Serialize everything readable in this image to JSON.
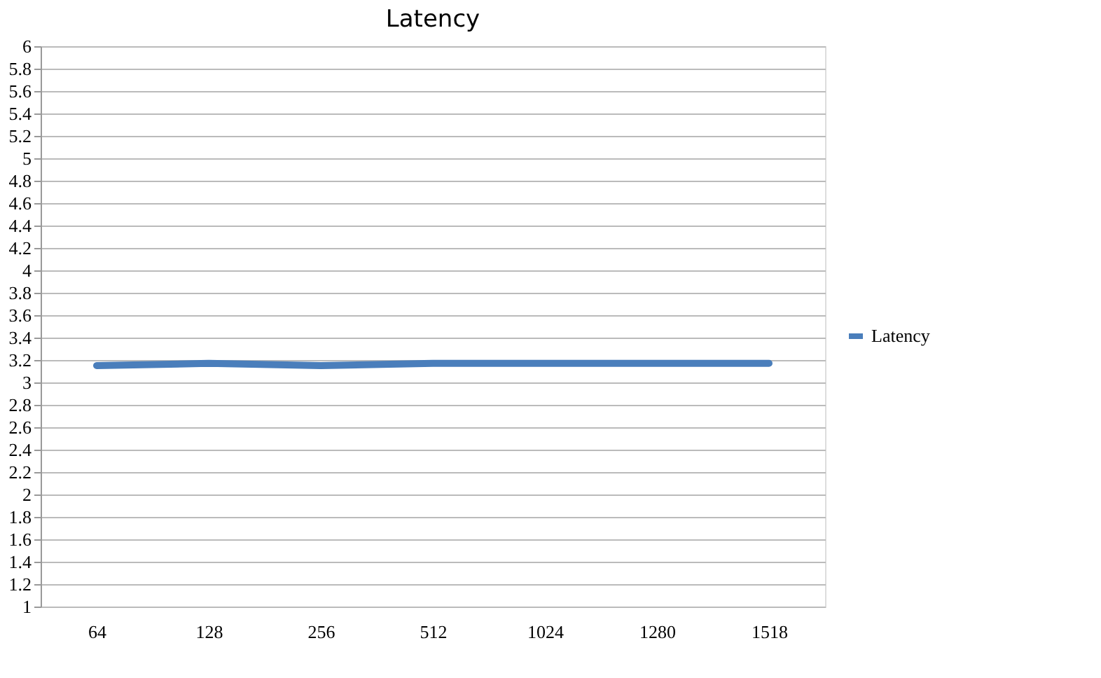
{
  "chart_data": {
    "type": "line",
    "title": "Latency",
    "categories": [
      "64",
      "128",
      "256",
      "512",
      "1024",
      "1280",
      "1518"
    ],
    "series": [
      {
        "name": "Latency",
        "color": "#4a7ebb",
        "values": [
          3.15,
          3.17,
          3.15,
          3.17,
          3.17,
          3.17,
          3.17
        ]
      }
    ],
    "ylim": [
      1,
      6
    ],
    "yticks": [
      1,
      1.2,
      1.4,
      1.6,
      1.8,
      2,
      2.2,
      2.4,
      2.6,
      2.8,
      3,
      3.2,
      3.4,
      3.6,
      3.8,
      4,
      4.2,
      4.4,
      4.6,
      4.8,
      5,
      5.2,
      5.4,
      5.6,
      5.8,
      6
    ],
    "grid": "y",
    "legend": "right",
    "marker": "none",
    "line_style": "solid"
  }
}
